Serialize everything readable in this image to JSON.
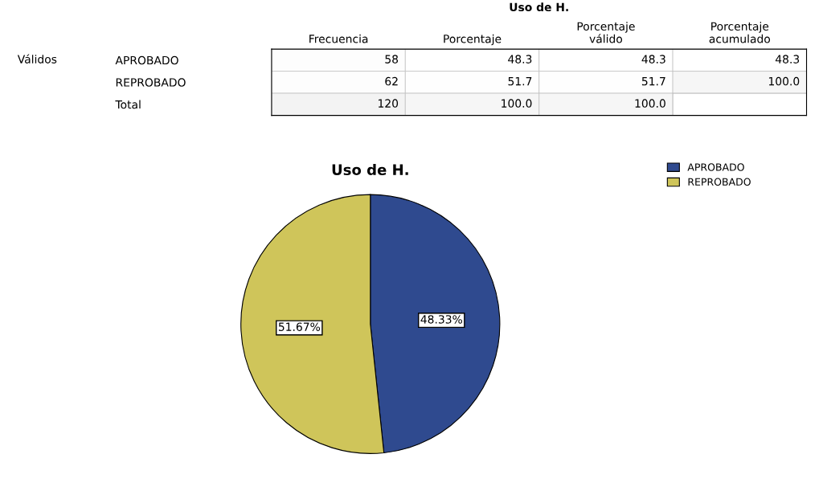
{
  "chart_data": [
    {
      "type": "heatmap",
      "title": "Uso de H.",
      "categories": [
        "Frecuencia",
        "Porcentaje",
        "Porcentaje\nválido",
        "Porcentaje\nacumulado"
      ],
      "y_categories": [
        "APROBADO",
        "REPROBADO",
        "Total"
      ],
      "cells": [
        [
          58,
          48.3,
          48.3,
          48.3
        ],
        [
          62,
          51.7,
          51.7,
          100.0
        ],
        [
          120,
          100.0,
          100.0,
          null
        ]
      ],
      "cell_labels": [
        [
          "58",
          "48.3",
          "48.3",
          "48.3"
        ],
        [
          "62",
          "51.7",
          "51.7",
          "100.0"
        ],
        [
          "120",
          "100.0",
          "100.0",
          null
        ]
      ],
      "annotations": [
        "Válidos"
      ]
    },
    {
      "type": "pie",
      "title": "Uso de H.",
      "categories": [
        "APROBADO",
        "REPROBADO"
      ],
      "values": [
        48.33,
        51.67
      ],
      "colors": [
        "#2f4a8f",
        "#cfc55a"
      ],
      "value_labels": [
        "48.33%",
        "51.67%"
      ],
      "legend": "top right"
    }
  ]
}
